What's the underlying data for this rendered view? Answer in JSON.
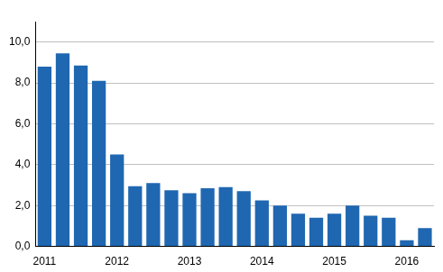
{
  "chart_data": {
    "type": "bar",
    "categories": [
      "2011",
      null,
      null,
      null,
      "2012",
      null,
      null,
      null,
      "2013",
      null,
      null,
      null,
      "2014",
      null,
      null,
      null,
      "2015",
      null,
      null,
      null,
      "2016",
      null
    ],
    "values": [
      8.8,
      9.45,
      8.85,
      8.1,
      4.5,
      2.95,
      3.1,
      2.75,
      2.6,
      2.85,
      2.9,
      2.7,
      2.25,
      2.0,
      1.6,
      1.4,
      1.6,
      2.0,
      1.5,
      1.4,
      0.3,
      0.9
    ],
    "color": "#1f67b1",
    "ylim": [
      0,
      11
    ],
    "yticks": [
      {
        "value": 0,
        "label": "0,0"
      },
      {
        "value": 2,
        "label": "2,0"
      },
      {
        "value": 4,
        "label": "4,0"
      },
      {
        "value": 6,
        "label": "6,0"
      },
      {
        "value": 8,
        "label": "8,0"
      },
      {
        "value": 10,
        "label": "10,0"
      }
    ],
    "grid": true
  }
}
